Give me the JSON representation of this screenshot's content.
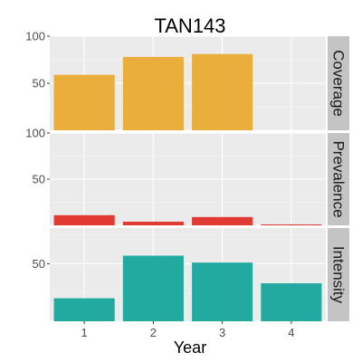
{
  "chart_data": {
    "type": "bar",
    "title": "TAN143",
    "xlabel": "Year",
    "ylabel": "",
    "x": [
      1,
      2,
      3,
      4
    ],
    "x_tick_labels": [
      "1",
      "2",
      "3",
      "4"
    ],
    "grid": true,
    "facet_strip_position": "right",
    "panels": [
      {
        "name": "Coverage",
        "color": "#E9AE3C",
        "ylim": [
          0,
          100
        ],
        "y_tick_labels": [
          "100",
          "50"
        ],
        "y_tick_values": [
          100,
          50
        ],
        "values": [
          59,
          78,
          81,
          null
        ]
      },
      {
        "name": "Prevalence",
        "color": "#E03A33",
        "ylim": [
          0,
          100
        ],
        "y_tick_labels": [
          "100",
          "50"
        ],
        "y_tick_values": [
          100,
          50
        ],
        "values": [
          11,
          4,
          9,
          1
        ]
      },
      {
        "name": "Intensity",
        "color": "#23AAA0",
        "ylim": [
          0,
          81
        ],
        "y_tick_labels": [
          "50"
        ],
        "y_tick_values": [
          50
        ],
        "values": [
          20,
          57,
          51,
          33
        ]
      }
    ]
  }
}
